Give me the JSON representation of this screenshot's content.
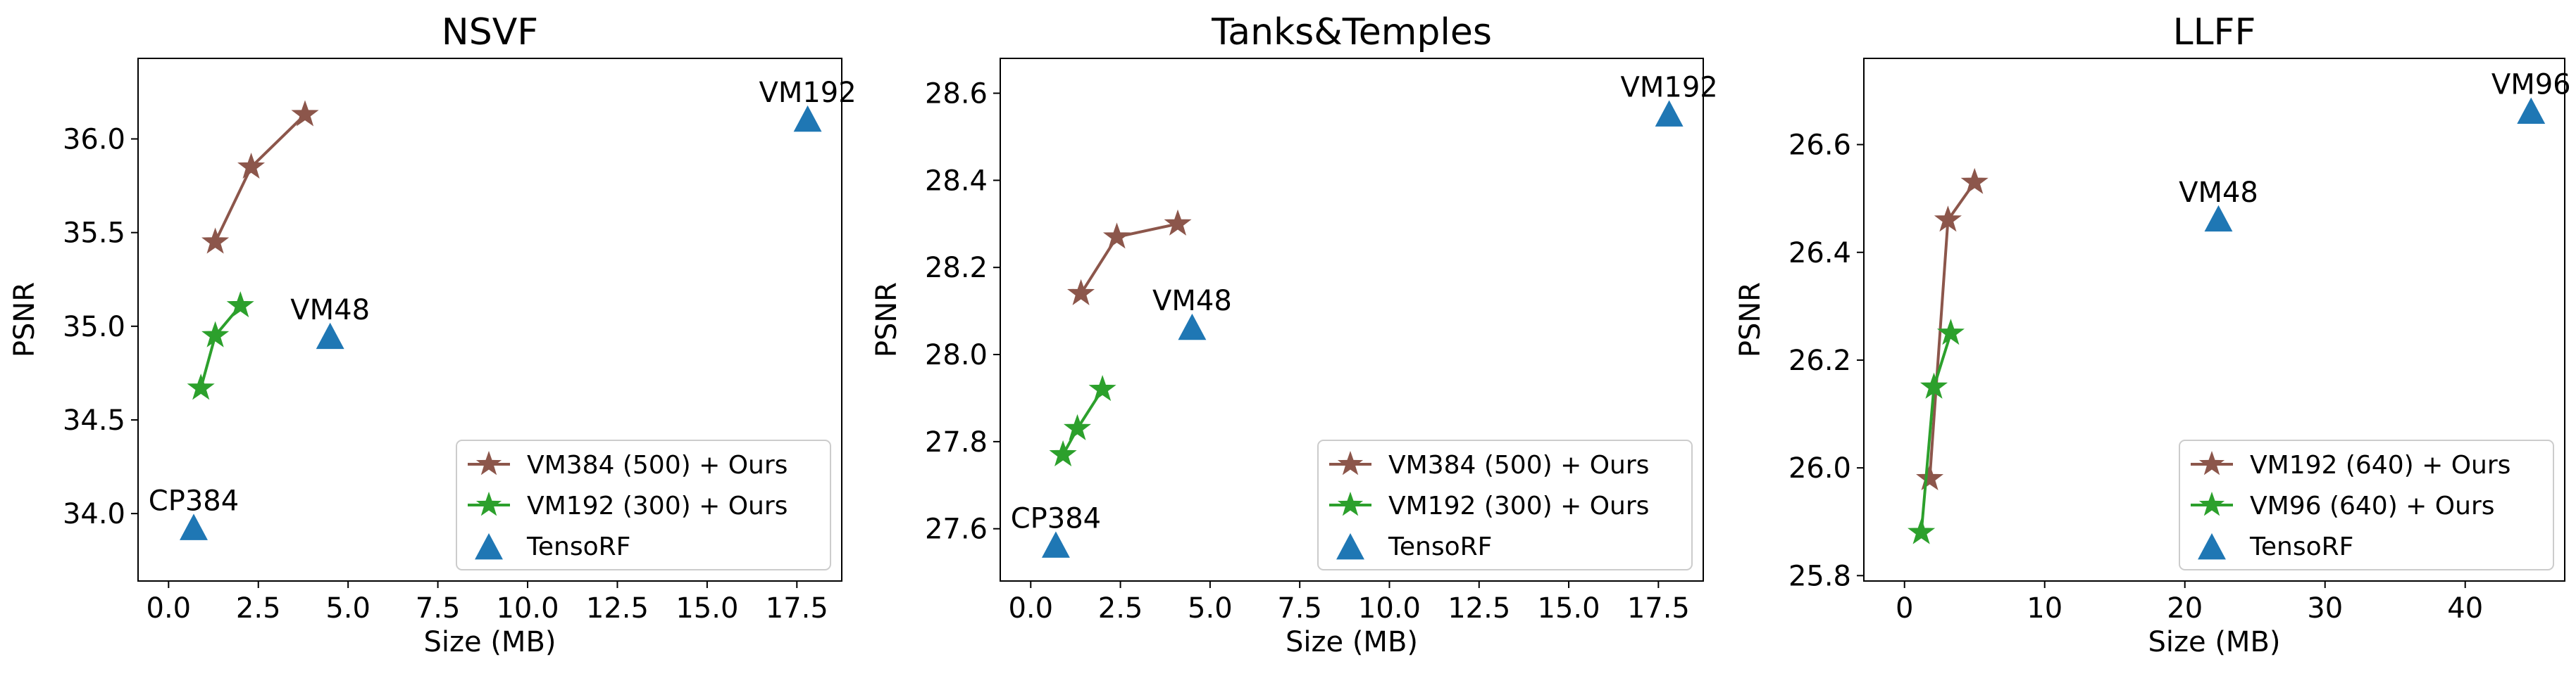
{
  "chart_data": [
    {
      "type": "scatter",
      "title": "NSVF",
      "xlabel": "Size (MB)",
      "ylabel": "PSNR",
      "xlim": [
        -0.85,
        18.75
      ],
      "ylim": [
        33.64,
        36.43
      ],
      "xticks": [
        0.0,
        2.5,
        5.0,
        7.5,
        10.0,
        12.5,
        15.0,
        17.5
      ],
      "xtick_labels": [
        "0.0",
        "2.5",
        "5.0",
        "7.5",
        "10.0",
        "12.5",
        "15.0",
        "17.5"
      ],
      "yticks": [
        34.0,
        34.5,
        35.0,
        35.5,
        36.0
      ],
      "ytick_labels": [
        "34.0",
        "34.5",
        "35.0",
        "35.5",
        "36.0"
      ],
      "grid": false,
      "legend_position": "lower-right",
      "series": [
        {
          "name": "VM384 (500) + Ours",
          "color": "#8c564b",
          "marker": "star-line",
          "x": [
            1.3,
            2.3,
            3.8
          ],
          "y": [
            35.45,
            35.85,
            36.13
          ]
        },
        {
          "name": "VM192 (300) + Ours",
          "color": "#2ca02c",
          "marker": "star-line",
          "x": [
            0.9,
            1.3,
            2.0
          ],
          "y": [
            34.67,
            34.95,
            35.11
          ]
        },
        {
          "name": "TensoRF",
          "color": "#1f77b4",
          "marker": "triangle",
          "x": [
            17.8,
            4.5,
            0.7
          ],
          "y": [
            36.1,
            34.94,
            33.92
          ],
          "point_labels": [
            "VM192",
            "VM48",
            "CP384"
          ]
        }
      ]
    },
    {
      "type": "scatter",
      "title": "Tanks&Temples",
      "xlabel": "Size (MB)",
      "ylabel": "PSNR",
      "xlim": [
        -0.85,
        18.75
      ],
      "ylim": [
        27.48,
        28.68
      ],
      "xticks": [
        0.0,
        2.5,
        5.0,
        7.5,
        10.0,
        12.5,
        15.0,
        17.5
      ],
      "xtick_labels": [
        "0.0",
        "2.5",
        "5.0",
        "7.5",
        "10.0",
        "12.5",
        "15.0",
        "17.5"
      ],
      "yticks": [
        27.6,
        27.8,
        28.0,
        28.2,
        28.4,
        28.6
      ],
      "ytick_labels": [
        "27.6",
        "27.8",
        "28.0",
        "28.2",
        "28.4",
        "28.6"
      ],
      "grid": false,
      "legend_position": "lower-right",
      "series": [
        {
          "name": "VM384 (500) + Ours",
          "color": "#8c564b",
          "marker": "star-line",
          "x": [
            1.4,
            2.4,
            4.1
          ],
          "y": [
            28.14,
            28.27,
            28.3
          ]
        },
        {
          "name": "VM192 (300) + Ours",
          "color": "#2ca02c",
          "marker": "star-line",
          "x": [
            0.9,
            1.3,
            2.0
          ],
          "y": [
            27.77,
            27.83,
            27.92
          ]
        },
        {
          "name": "TensoRF",
          "color": "#1f77b4",
          "marker": "triangle",
          "x": [
            17.8,
            4.5,
            0.7
          ],
          "y": [
            28.55,
            28.06,
            27.56
          ],
          "point_labels": [
            "VM192",
            "VM48",
            "CP384"
          ]
        }
      ]
    },
    {
      "type": "scatter",
      "title": "LLFF",
      "xlabel": "Size (MB)",
      "ylabel": "PSNR",
      "xlim": [
        -2.9,
        47.1
      ],
      "ylim": [
        25.79,
        26.76
      ],
      "xticks": [
        0,
        10,
        20,
        30,
        40
      ],
      "xtick_labels": [
        "0",
        "10",
        "20",
        "30",
        "40"
      ],
      "yticks": [
        25.8,
        26.0,
        26.2,
        26.4,
        26.6
      ],
      "ytick_labels": [
        "25.8",
        "26.0",
        "26.2",
        "26.4",
        "26.6"
      ],
      "grid": false,
      "legend_position": "lower-right",
      "series": [
        {
          "name": "VM192 (640) + Ours",
          "color": "#8c564b",
          "marker": "star-line",
          "x": [
            1.8,
            3.1,
            5.0
          ],
          "y": [
            25.98,
            26.46,
            26.53
          ]
        },
        {
          "name": "VM96   (640) + Ours",
          "color": "#2ca02c",
          "marker": "star-line",
          "x": [
            1.2,
            2.1,
            3.3
          ],
          "y": [
            25.88,
            26.15,
            26.25
          ]
        },
        {
          "name": "TensoRF",
          "color": "#1f77b4",
          "marker": "triangle",
          "x": [
            44.7,
            22.4
          ],
          "y": [
            26.66,
            26.46
          ],
          "point_labels": [
            "VM96",
            "VM48"
          ]
        }
      ]
    }
  ]
}
